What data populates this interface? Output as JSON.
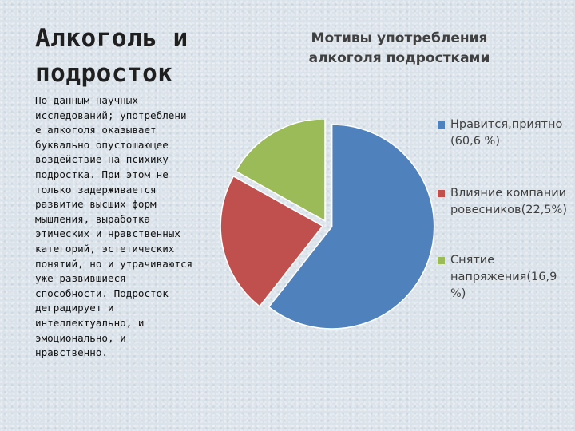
{
  "slide": {
    "title_lines": [
      "Алкоголь и",
      "подросток"
    ],
    "body_lines": [
      "По данным научных",
      "исследований; употреблени",
      "е алкоголя оказывает",
      "буквально опустошающее",
      "воздействие на психику",
      "подростка. При этом не",
      "только задерживается",
      "развитие высших форм",
      "мышления, выработка",
      "этических и нравственных",
      "категорий, эстетических",
      "понятий, но и утрачиваются",
      "уже развившиеся",
      "способности. Подросток",
      "деградирует и",
      "интеллектуально, и",
      "эмоционально, и",
      "нравственно."
    ]
  },
  "chart_data": {
    "type": "pie",
    "title_lines": [
      "Мотивы употребления",
      "алкоголя подростками"
    ],
    "slices": [
      {
        "label": "Нравится,приятно (60,6 %)",
        "legend_lines": [
          "Нравится,приятно",
          "(60,6 %)"
        ],
        "value": 60.6,
        "color": "#4f81bd"
      },
      {
        "label": "Влияние компании ровесников(22,5%)",
        "legend_lines": [
          "Влияние компании",
          "ровесников(22,5%)"
        ],
        "value": 22.5,
        "color": "#c0504d"
      },
      {
        "label": "Снятие напряжения(16,9 %)",
        "legend_lines": [
          "Снятие",
          "напряжения(16,9",
          "%)"
        ],
        "value": 16.9,
        "color": "#9bbb59"
      }
    ],
    "legend_position": "right"
  }
}
